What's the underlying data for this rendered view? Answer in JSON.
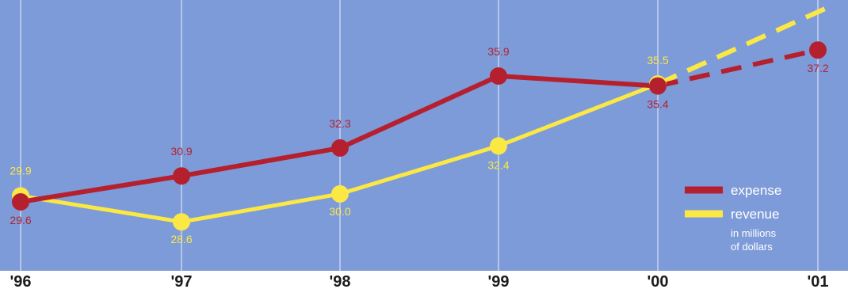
{
  "chart_data": {
    "type": "line",
    "x": [
      "'96",
      "'97",
      "'98",
      "'99",
      "'00",
      "'01"
    ],
    "series": [
      {
        "name": "expense",
        "values": [
          29.6,
          30.9,
          32.3,
          35.9,
          35.4,
          37.2
        ],
        "labels": [
          "29.6",
          "30.9",
          "32.3",
          "35.9",
          "35.4",
          "37.2"
        ],
        "projected_from_index": 4
      },
      {
        "name": "revenue",
        "values": [
          29.9,
          28.6,
          30.0,
          32.4,
          35.5,
          null
        ],
        "labels": [
          "29.9",
          "28.6",
          "30.0",
          "32.4",
          "35.5",
          ""
        ],
        "projected_from_index": 4
      }
    ],
    "legend": {
      "position": "bottom-right",
      "note_line1": "in millions",
      "note_line2": "of dollars"
    },
    "grid": "vertical",
    "colors": {
      "background": "#7e9bd9",
      "gridline": "#b4c5ec",
      "expense": "#b5202e",
      "revenue": "#fbe845",
      "tick": "#1b1b1b"
    }
  }
}
